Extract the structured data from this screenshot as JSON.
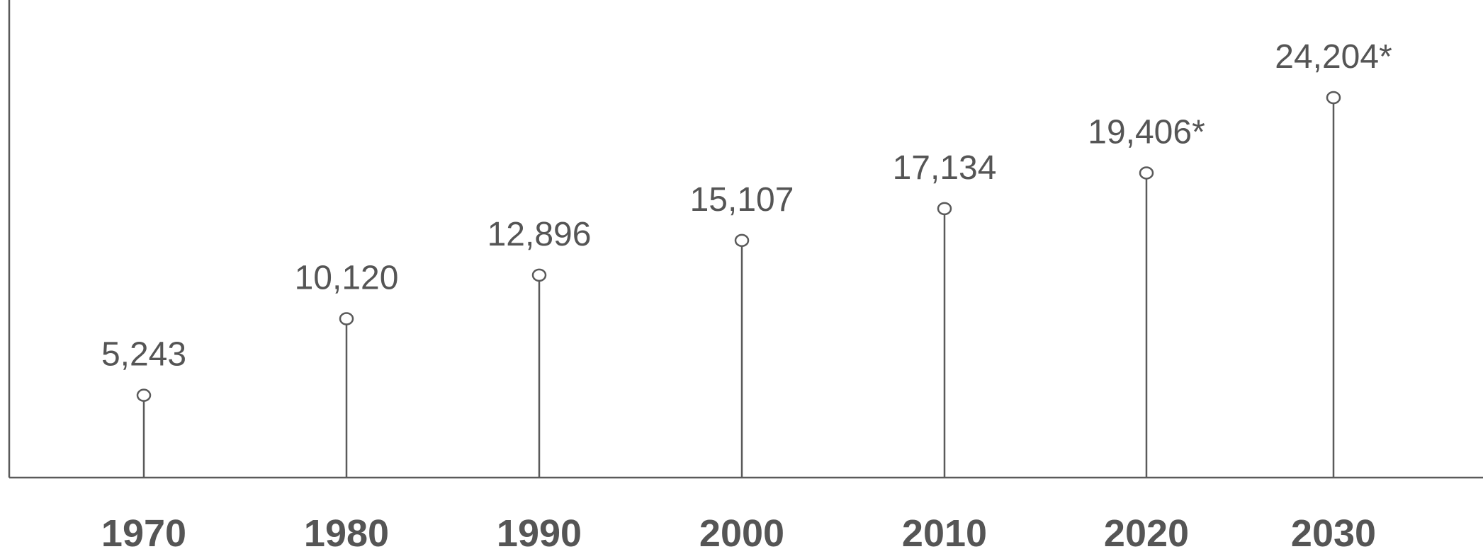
{
  "chart_data": {
    "type": "lollipop",
    "title": "",
    "xlabel": "",
    "ylabel": "",
    "categories": [
      "1970",
      "1980",
      "1990",
      "2000",
      "2010",
      "2020",
      "2030"
    ],
    "values": [
      5243,
      10120,
      12896,
      15107,
      17134,
      19406,
      24204
    ],
    "data_labels": [
      "5,243",
      "10,120",
      "12,896",
      "15,107",
      "17,134",
      "19,406*",
      "24,204*"
    ],
    "ylim": [
      0,
      24204
    ],
    "grid": false,
    "legend": "none",
    "colors": {
      "stroke": "#5a5a5a",
      "text": "#555555",
      "marker_fill": "#ffffff"
    }
  }
}
